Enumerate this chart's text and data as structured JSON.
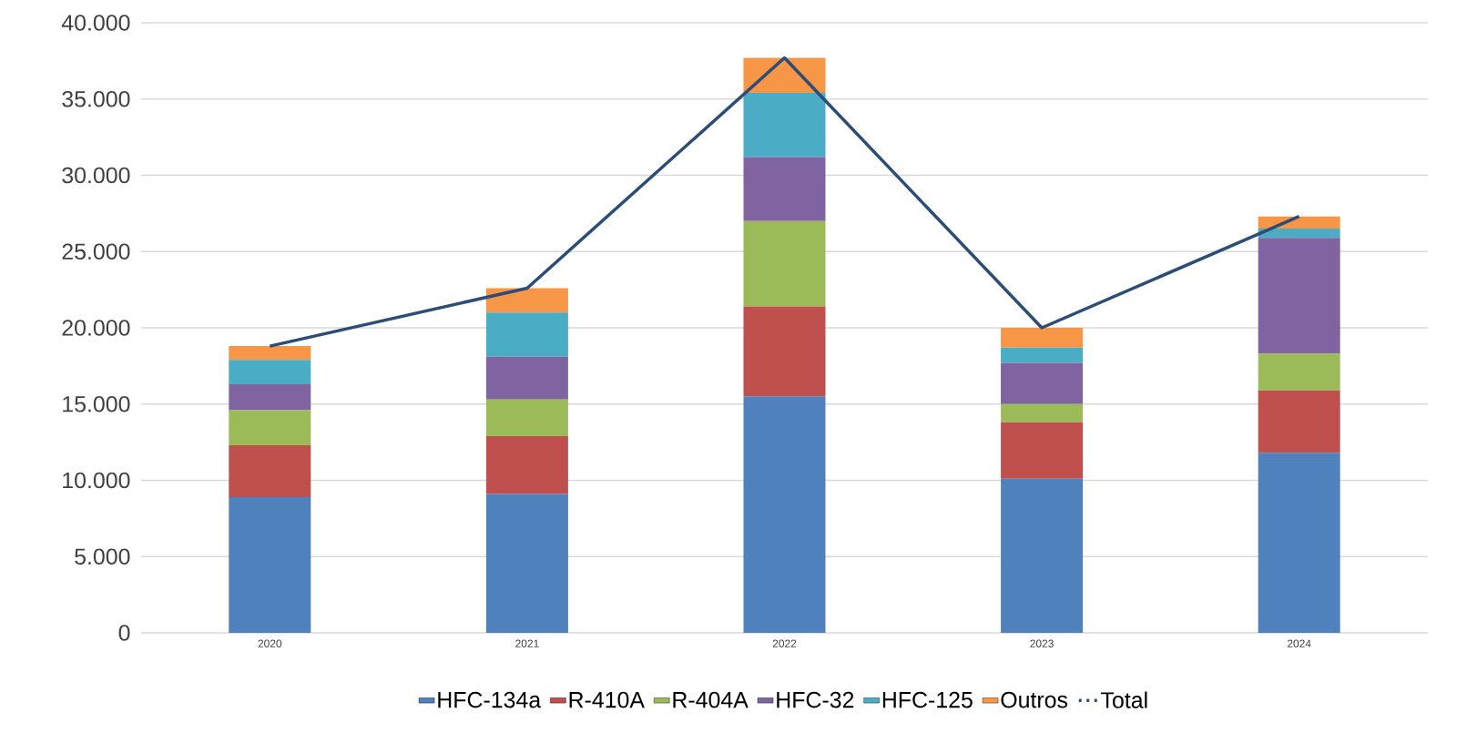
{
  "chart_data": {
    "type": "bar",
    "stacked": true,
    "grid": "y",
    "legend": "bottom",
    "categories": [
      "2020",
      "2021",
      "2022",
      "2023",
      "2024"
    ],
    "ylim": [
      0,
      40000
    ],
    "yticks": [
      {
        "value": 0,
        "label": "0"
      },
      {
        "value": 5000,
        "label": "5.000"
      },
      {
        "value": 10000,
        "label": "10.000"
      },
      {
        "value": 15000,
        "label": "15.000"
      },
      {
        "value": 20000,
        "label": "20.000"
      },
      {
        "value": 25000,
        "label": "25.000"
      },
      {
        "value": 30000,
        "label": "30.000"
      },
      {
        "value": 35000,
        "label": "35.000"
      },
      {
        "value": 40000,
        "label": "40.000"
      }
    ],
    "series": [
      {
        "name": "HFC-134a",
        "color": "#4f81bd",
        "values": [
          8900,
          9100,
          15500,
          10100,
          11800
        ]
      },
      {
        "name": "R-410A",
        "color": "#c0504d",
        "values": [
          3400,
          3800,
          5900,
          3700,
          4100
        ]
      },
      {
        "name": "R-404A",
        "color": "#9bbb59",
        "values": [
          2300,
          2400,
          5600,
          1200,
          2400
        ]
      },
      {
        "name": "HFC-32",
        "color": "#8064a2",
        "values": [
          1700,
          2800,
          4200,
          2700,
          7600
        ]
      },
      {
        "name": "HFC-125",
        "color": "#4bacc6",
        "values": [
          1600,
          2900,
          4200,
          1000,
          600
        ]
      },
      {
        "name": "Outros",
        "color": "#f79646",
        "values": [
          900,
          1600,
          2300,
          1300,
          800
        ]
      },
      {
        "name": "Total",
        "type": "line",
        "color": "#2c4d75",
        "values": [
          18800,
          22600,
          37700,
          20000,
          27300
        ]
      }
    ]
  }
}
